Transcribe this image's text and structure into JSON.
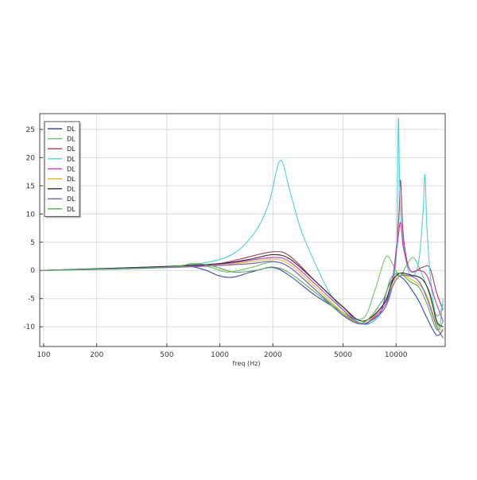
{
  "chart_data": {
    "type": "line",
    "title": "",
    "xlabel": "freq (Hz)",
    "ylabel": "",
    "xscale": "log",
    "xlim": [
      95,
      19000
    ],
    "ylim": [
      -13.5,
      27.8
    ],
    "xticks": [
      100,
      200,
      500,
      1000,
      2000,
      5000,
      10000
    ],
    "xtick_labels": [
      "100",
      "200",
      "500",
      "1000",
      "2000",
      "5000",
      "10000"
    ],
    "yticks": [
      -10,
      -5,
      0,
      5,
      10,
      15,
      20,
      25
    ],
    "ytick_labels": [
      "-10",
      "-5",
      "0",
      "5",
      "10",
      "15",
      "20",
      "25"
    ],
    "grid": true,
    "legend_position": "top-left",
    "series": [
      {
        "name": "DL",
        "color": "#3b4bb0",
        "points": [
          [
            100,
            0
          ],
          [
            300,
            0.3
          ],
          [
            600,
            0.8
          ],
          [
            800,
            0.2
          ],
          [
            1000,
            -1
          ],
          [
            1200,
            -1.2
          ],
          [
            1500,
            -0.3
          ],
          [
            2000,
            0.5
          ],
          [
            2500,
            -1
          ],
          [
            3500,
            -4.5
          ],
          [
            5000,
            -7.5
          ],
          [
            6500,
            -9.5
          ],
          [
            8000,
            -8
          ],
          [
            9000,
            -3
          ],
          [
            10000,
            -1
          ],
          [
            11000,
            -1.5
          ],
          [
            12000,
            -3
          ],
          [
            13500,
            -5.5
          ],
          [
            15000,
            -8.5
          ],
          [
            17000,
            -11.5
          ],
          [
            18500,
            -10.5
          ]
        ]
      },
      {
        "name": "DL",
        "color": "#6ac36a",
        "points": [
          [
            100,
            0
          ],
          [
            400,
            0.4
          ],
          [
            700,
            1.0
          ],
          [
            900,
            0.5
          ],
          [
            1100,
            -0.3
          ],
          [
            1500,
            0.5
          ],
          [
            2000,
            1.5
          ],
          [
            2500,
            0.5
          ],
          [
            3500,
            -3.5
          ],
          [
            5000,
            -7.5
          ],
          [
            6500,
            -8.5
          ],
          [
            7500,
            -4
          ],
          [
            8500,
            1.5
          ],
          [
            9000,
            2.5
          ],
          [
            9600,
            1
          ],
          [
            10500,
            -1
          ],
          [
            11500,
            1
          ],
          [
            12500,
            2.3
          ],
          [
            13500,
            0.5
          ],
          [
            15000,
            -3
          ],
          [
            17000,
            -8
          ],
          [
            18500,
            -6
          ]
        ]
      },
      {
        "name": "DL",
        "color": "#a83a5a",
        "points": [
          [
            100,
            0
          ],
          [
            500,
            0.6
          ],
          [
            900,
            1.0
          ],
          [
            1300,
            2
          ],
          [
            2000,
            3.3
          ],
          [
            2500,
            2.5
          ],
          [
            3500,
            -2
          ],
          [
            5000,
            -6.5
          ],
          [
            6500,
            -9.5
          ],
          [
            8500,
            -6
          ],
          [
            9500,
            -2
          ],
          [
            10300,
            8
          ],
          [
            10600,
            16
          ],
          [
            11000,
            6
          ],
          [
            12000,
            0
          ],
          [
            14000,
            0.5
          ],
          [
            15500,
            0.5
          ],
          [
            17000,
            -4
          ],
          [
            18500,
            -7
          ]
        ]
      },
      {
        "name": "DL",
        "color": "#4ed0dc",
        "points": [
          [
            100,
            0
          ],
          [
            400,
            0.4
          ],
          [
            800,
            1.3
          ],
          [
            1200,
            3
          ],
          [
            1600,
            7
          ],
          [
            1900,
            12
          ],
          [
            2200,
            19.5
          ],
          [
            2500,
            14
          ],
          [
            2900,
            7
          ],
          [
            3500,
            1
          ],
          [
            4200,
            -4
          ],
          [
            5000,
            -7
          ],
          [
            6000,
            -9
          ],
          [
            7000,
            -9.5
          ],
          [
            8500,
            -7
          ],
          [
            9500,
            -3
          ],
          [
            10100,
            5
          ],
          [
            10300,
            27
          ],
          [
            10600,
            10
          ],
          [
            11500,
            1
          ],
          [
            12500,
            -1
          ],
          [
            13500,
            2
          ],
          [
            14200,
            10
          ],
          [
            14600,
            17
          ],
          [
            15000,
            7
          ],
          [
            16000,
            -4
          ],
          [
            17500,
            -10
          ],
          [
            18500,
            -5
          ]
        ]
      },
      {
        "name": "DL",
        "color": "#c23ac0",
        "points": [
          [
            100,
            0
          ],
          [
            500,
            0.7
          ],
          [
            900,
            1.0
          ],
          [
            1300,
            1.5
          ],
          [
            2000,
            2.3
          ],
          [
            2500,
            1.5
          ],
          [
            3500,
            -2.5
          ],
          [
            5000,
            -7
          ],
          [
            6500,
            -9.5
          ],
          [
            8500,
            -6.5
          ],
          [
            9500,
            -2
          ],
          [
            10200,
            5
          ],
          [
            10600,
            8.5
          ],
          [
            11000,
            4
          ],
          [
            12000,
            0
          ],
          [
            13500,
            0
          ],
          [
            15000,
            -1
          ],
          [
            17000,
            -6
          ],
          [
            18500,
            -9
          ]
        ]
      },
      {
        "name": "DL",
        "color": "#e0c020",
        "points": [
          [
            100,
            0
          ],
          [
            500,
            0.6
          ],
          [
            900,
            0.8
          ],
          [
            1500,
            1.5
          ],
          [
            2000,
            2
          ],
          [
            2500,
            1
          ],
          [
            3500,
            -3
          ],
          [
            5000,
            -7.5
          ],
          [
            6500,
            -9.5
          ],
          [
            8500,
            -6
          ],
          [
            9500,
            -2.5
          ],
          [
            10500,
            -0.5
          ],
          [
            12000,
            -1.5
          ],
          [
            13500,
            -2.5
          ],
          [
            15000,
            -4.5
          ],
          [
            17000,
            -9.5
          ],
          [
            18500,
            -11
          ]
        ]
      },
      {
        "name": "DL",
        "color": "#2b2b2b",
        "points": [
          [
            100,
            0
          ],
          [
            500,
            0.7
          ],
          [
            1000,
            1.2
          ],
          [
            1500,
            2
          ],
          [
            2000,
            2.8
          ],
          [
            2500,
            2
          ],
          [
            3500,
            -2
          ],
          [
            5000,
            -6.5
          ],
          [
            6500,
            -9
          ],
          [
            8500,
            -6
          ],
          [
            9500,
            -2
          ],
          [
            10500,
            -0.5
          ],
          [
            12000,
            -0.8
          ],
          [
            14000,
            -1.5
          ],
          [
            15500,
            -4
          ],
          [
            17000,
            -9
          ],
          [
            18500,
            -10
          ]
        ]
      },
      {
        "name": "DL",
        "color": "#7a5ac8",
        "points": [
          [
            100,
            0
          ],
          [
            500,
            0.5
          ],
          [
            900,
            0.8
          ],
          [
            1500,
            1.2
          ],
          [
            2000,
            1.6
          ],
          [
            2500,
            0.5
          ],
          [
            3500,
            -3.5
          ],
          [
            5000,
            -8
          ],
          [
            6500,
            -9.5
          ],
          [
            8500,
            -7
          ],
          [
            9500,
            -3
          ],
          [
            10500,
            -1
          ],
          [
            12000,
            -1
          ],
          [
            13500,
            -2
          ],
          [
            15000,
            -5
          ],
          [
            17000,
            -10
          ],
          [
            18500,
            -12
          ]
        ]
      },
      {
        "name": "DL",
        "color": "#58a858",
        "points": [
          [
            100,
            0
          ],
          [
            500,
            0.6
          ],
          [
            700,
            1.2
          ],
          [
            900,
            0.8
          ],
          [
            1200,
            -0.3
          ],
          [
            1600,
            0
          ],
          [
            2000,
            0.6
          ],
          [
            2500,
            -0.5
          ],
          [
            3500,
            -4
          ],
          [
            5000,
            -7.8
          ],
          [
            6500,
            -9.3
          ],
          [
            8500,
            -5
          ],
          [
            9300,
            -1.5
          ],
          [
            10500,
            -0.5
          ],
          [
            12000,
            -2
          ],
          [
            13500,
            -3
          ],
          [
            15000,
            -6
          ],
          [
            17000,
            -10.5
          ],
          [
            18500,
            -9
          ]
        ]
      }
    ]
  }
}
